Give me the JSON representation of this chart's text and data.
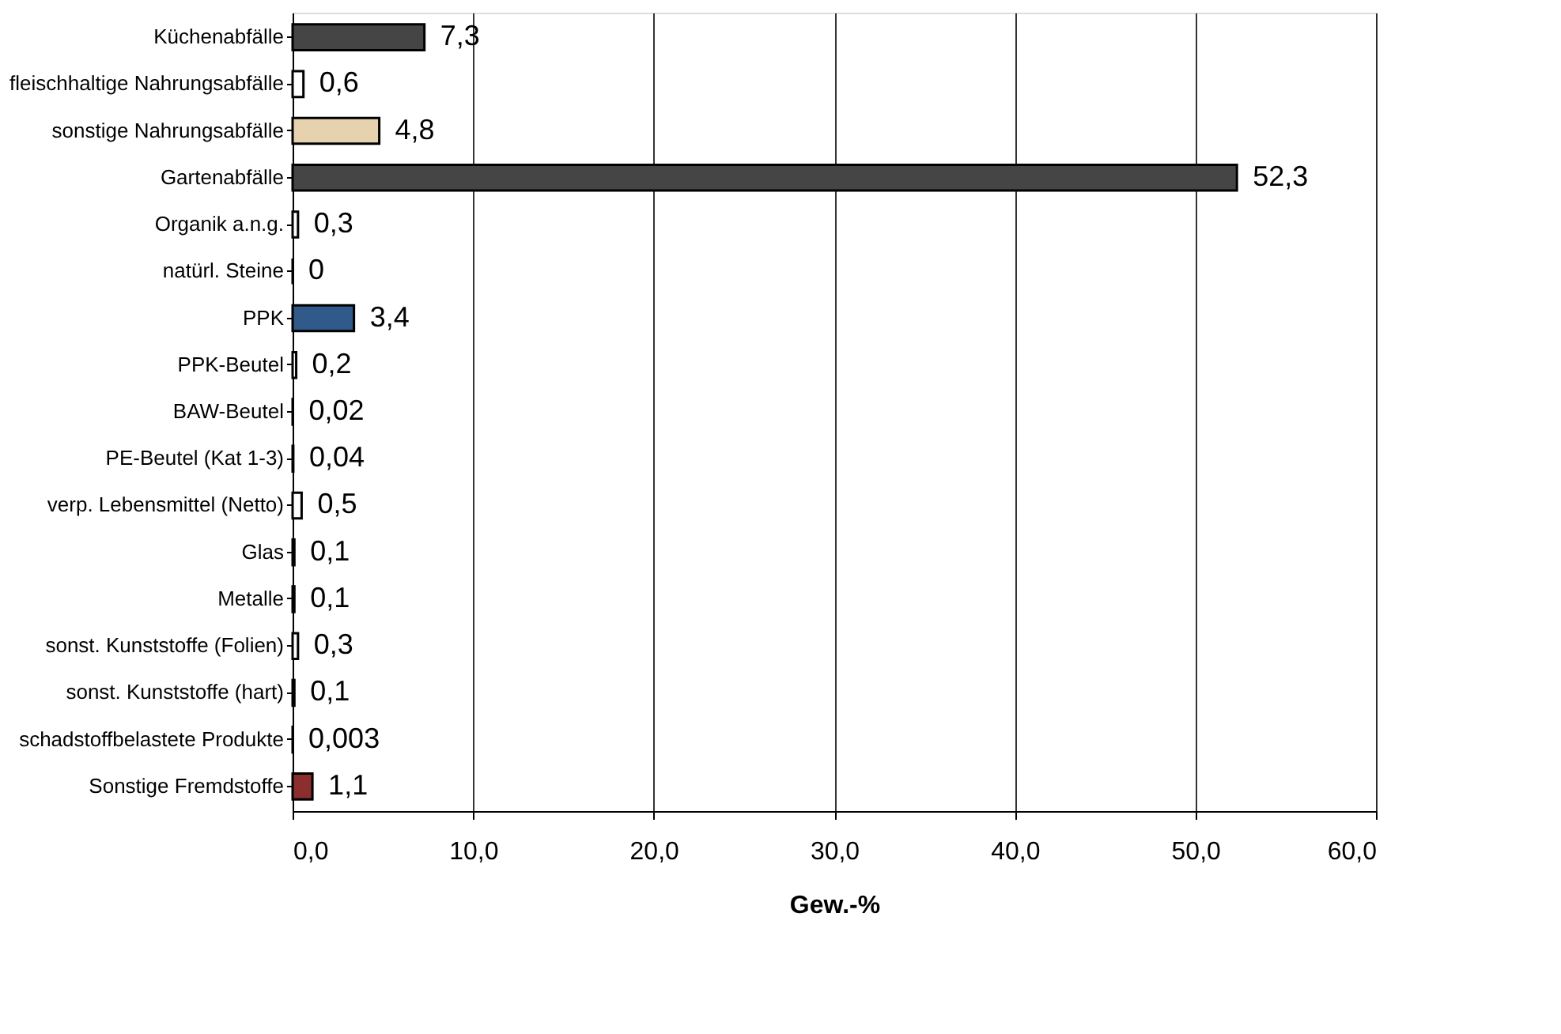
{
  "chart_data": {
    "type": "bar",
    "orientation": "horizontal",
    "xlabel": "Gew.-%",
    "categories": [
      "Küchenabfälle",
      "fleischhaltige Nahrungsabfälle",
      "sonstige Nahrungsabfälle",
      "Gartenabfälle",
      "Organik a.n.g.",
      "natürl. Steine",
      "PPK",
      "PPK-Beutel",
      "BAW-Beutel",
      "PE-Beutel (Kat 1-3)",
      "verp. Lebensmittel (Netto)",
      "Glas",
      "Metalle",
      "sonst. Kunststoffe (Folien)",
      "sonst. Kunststoffe (hart)",
      "schadstoffbelastete Produkte",
      "Sonstige Fremdstoffe"
    ],
    "values": [
      7.3,
      0.6,
      4.8,
      52.3,
      0.3,
      0,
      3.4,
      0.2,
      0.02,
      0.04,
      0.5,
      0.1,
      0.1,
      0.3,
      0.1,
      0.003,
      1.1
    ],
    "colors": [
      "#454545",
      "#ffffff",
      "#e6d2ae",
      "#454545",
      "#ffffff",
      "#000000",
      "#2f5a8a",
      "#ffffff",
      "#ffffff",
      "#ffffff",
      "#ffffff",
      "#ffffff",
      "#ffffff",
      "#ffffff",
      "#ffffff",
      "#ffffff",
      "#8b2e2e"
    ],
    "value_labels": [
      "7,3",
      "0,6",
      "4,8",
      "52,3",
      "0,3",
      "0",
      "3,4",
      "0,2",
      "0,02",
      "0,04",
      "0,5",
      "0,1",
      "0,1",
      "0,3",
      "0,1",
      "0,003",
      "1,1"
    ],
    "xlim": [
      0,
      60
    ],
    "xticks": [
      {
        "value": 0,
        "label": "0,0"
      },
      {
        "value": 10,
        "label": "10,0"
      },
      {
        "value": 20,
        "label": "20,0"
      },
      {
        "value": 30,
        "label": "30,0"
      },
      {
        "value": 40,
        "label": "40,0"
      },
      {
        "value": 50,
        "label": "50,0"
      },
      {
        "value": 60,
        "label": "60,0"
      }
    ],
    "grid": "x"
  }
}
